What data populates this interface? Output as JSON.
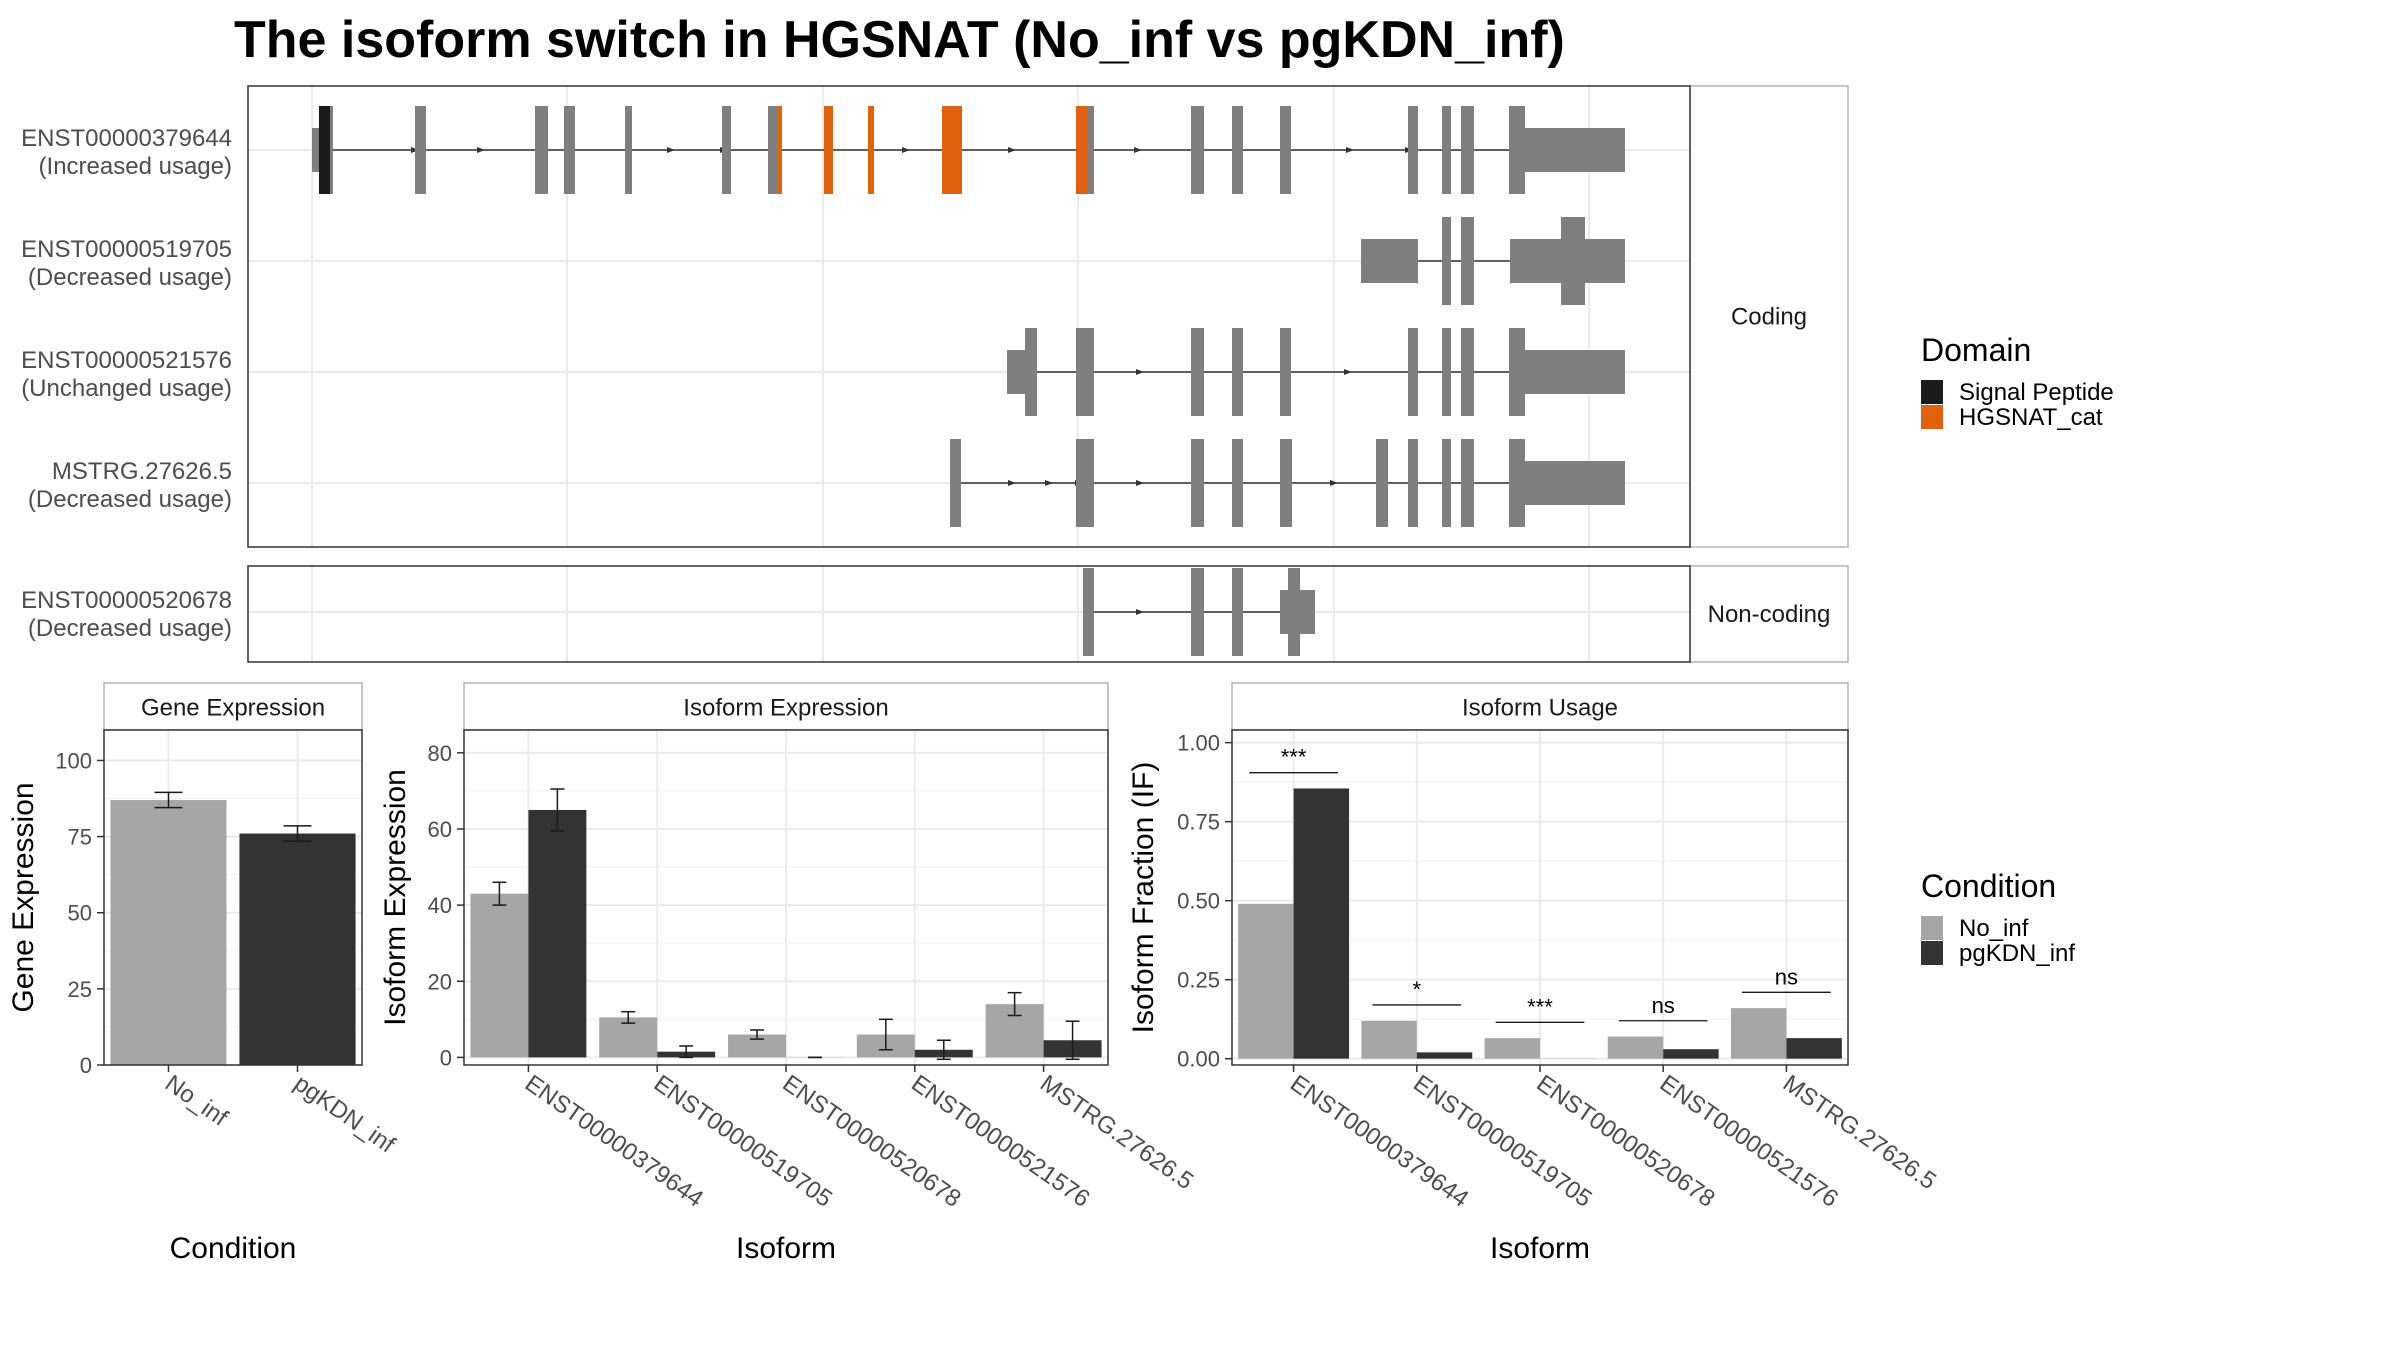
{
  "title": "The isoform switch in HGSNAT (No_inf vs pgKDN_inf)",
  "colors": {
    "exon": "#7f7f7f",
    "signal_peptide": "#1a1a1a",
    "hgsnat_cat": "#e1620e",
    "no_inf": "#a6a6a6",
    "pgkdn_inf": "#333333"
  },
  "chart_data": [
    {
      "type": "gene_structure",
      "panels": [
        {
          "strip": "Coding",
          "isoforms": [
            {
              "id": "ENST00000379644",
              "status": "(Increased usage)"
            },
            {
              "id": "ENST00000519705",
              "status": "(Decreased usage)"
            },
            {
              "id": "ENST00000521576",
              "status": "(Unchanged usage)"
            },
            {
              "id": "MSTRG.27626.5",
              "status": "(Decreased usage)"
            }
          ]
        },
        {
          "strip": "Non-coding",
          "isoforms": [
            {
              "id": "ENST00000520678",
              "status": "(Decreased usage)"
            }
          ]
        }
      ],
      "legend": {
        "title": "Domain",
        "items": [
          {
            "name": "Signal Peptide",
            "color": "#1a1a1a"
          },
          {
            "name": "HGSNAT_cat",
            "color": "#e1620e"
          }
        ],
        "placement": "right"
      }
    },
    {
      "type": "bar",
      "panel": "Gene Expression",
      "categories": [
        "No_inf",
        "pgKDN_inf"
      ],
      "values": [
        87,
        76
      ],
      "errors": [
        2.5,
        2.5
      ],
      "xlabel": "Condition",
      "ylabel": "Gene Expression",
      "ylim": [
        0,
        110
      ],
      "yticks": [
        0,
        25,
        50,
        75,
        100
      ]
    },
    {
      "type": "bar",
      "panel": "Isoform Expression",
      "categories": [
        "ENST00000379644",
        "ENST00000519705",
        "ENST00000520678",
        "ENST00000521576",
        "MSTRG.27626.5"
      ],
      "series": [
        {
          "name": "No_inf",
          "values": [
            43,
            10.5,
            6,
            6,
            14
          ],
          "errors": [
            3,
            1.5,
            1.2,
            4,
            3
          ]
        },
        {
          "name": "pgKDN_inf",
          "values": [
            65,
            1.5,
            0,
            2,
            4.5
          ],
          "errors": [
            5.5,
            1.5,
            0,
            2.5,
            5
          ]
        }
      ],
      "xlabel": "Isoform",
      "ylabel": "Isoform Expression",
      "ylim": [
        -2,
        86
      ],
      "yticks": [
        0,
        20,
        40,
        60,
        80
      ]
    },
    {
      "type": "bar",
      "panel": "Isoform Usage",
      "categories": [
        "ENST00000379644",
        "ENST00000519705",
        "ENST00000520678",
        "ENST00000521576",
        "MSTRG.27626.5"
      ],
      "series": [
        {
          "name": "No_inf",
          "values": [
            0.49,
            0.12,
            0.065,
            0.07,
            0.16
          ]
        },
        {
          "name": "pgKDN_inf",
          "values": [
            0.855,
            0.02,
            0,
            0.03,
            0.065
          ]
        }
      ],
      "significance": [
        "***",
        "*",
        "***",
        "ns",
        "ns"
      ],
      "xlabel": "Isoform",
      "ylabel": "Isoform Fraction (IF)",
      "ylim": [
        -0.02,
        1.04
      ],
      "yticks": [
        "0.00",
        "0.25",
        "0.50",
        "0.75",
        "1.00"
      ]
    }
  ],
  "condition_legend": {
    "title": "Condition",
    "items": [
      {
        "name": "No_inf",
        "color": "#a6a6a6"
      },
      {
        "name": "pgKDN_inf",
        "color": "#333333"
      }
    ]
  }
}
